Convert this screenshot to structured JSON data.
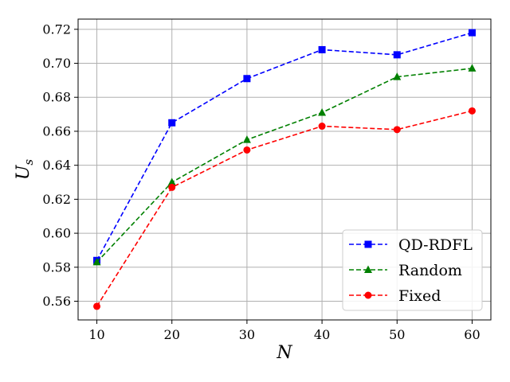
{
  "chart_data": {
    "type": "line",
    "title": "",
    "xlabel": "N",
    "ylabel": "U",
    "ylabel_sub": "s",
    "xlim": [
      7.5,
      62.5
    ],
    "ylim": [
      0.549,
      0.726
    ],
    "x_ticks": [
      10,
      20,
      30,
      40,
      50,
      60
    ],
    "y_ticks": [
      0.56,
      0.58,
      0.6,
      0.62,
      0.64,
      0.66,
      0.68,
      0.7,
      0.72
    ],
    "x": [
      10,
      20,
      30,
      40,
      50,
      60
    ],
    "grid": true,
    "legend_position": "lower-right",
    "series": [
      {
        "name": "QD-RDFL",
        "color": "#0000ff",
        "marker": "square",
        "values": [
          0.584,
          0.665,
          0.691,
          0.708,
          0.705,
          0.718
        ]
      },
      {
        "name": "Random",
        "color": "#008000",
        "marker": "triangle",
        "values": [
          0.583,
          0.63,
          0.655,
          0.671,
          0.692,
          0.697
        ]
      },
      {
        "name": "Fixed",
        "color": "#ff0000",
        "marker": "circle",
        "values": [
          0.557,
          0.627,
          0.649,
          0.663,
          0.661,
          0.672
        ]
      }
    ]
  }
}
